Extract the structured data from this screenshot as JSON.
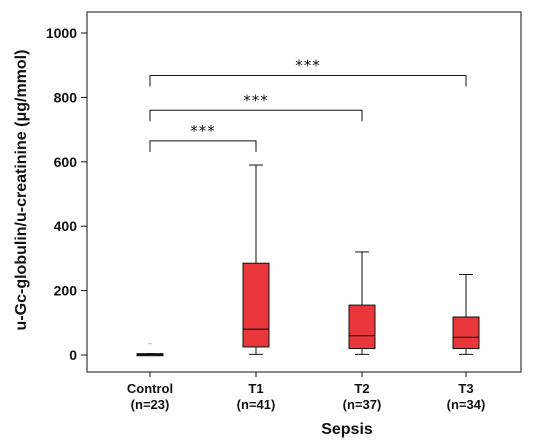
{
  "chart_data": {
    "type": "box",
    "xlabel": "Sepsis",
    "ylabel": "u-Gc-globulin/u-creatinine (μg/mmol)",
    "ylim": [
      -60,
      1040
    ],
    "yticks": [
      0,
      200,
      400,
      600,
      800,
      1000
    ],
    "categories": [
      "Control",
      "T1",
      "T2",
      "T3"
    ],
    "category_sublabels": [
      "(n=23)",
      "(n=41)",
      "(n=37)",
      "(n=34)"
    ],
    "boxes": [
      {
        "category": "Control",
        "whisker_low": 0,
        "q1": 0,
        "median": 2,
        "q3": 4,
        "whisker_high": 4,
        "outlier": 35
      },
      {
        "category": "T1",
        "whisker_low": 2,
        "q1": 25,
        "median": 80,
        "q3": 285,
        "whisker_high": 590
      },
      {
        "category": "T2",
        "whisker_low": 2,
        "q1": 20,
        "median": 60,
        "q3": 155,
        "whisker_high": 320
      },
      {
        "category": "T3",
        "whisker_low": 2,
        "q1": 20,
        "median": 55,
        "q3": 118,
        "whisker_high": 250
      }
    ],
    "significance": [
      {
        "from": "Control",
        "to": "T1",
        "label": "***",
        "level": 665
      },
      {
        "from": "Control",
        "to": "T2",
        "label": "***",
        "level": 760
      },
      {
        "from": "Control",
        "to": "T3",
        "label": "***",
        "level": 868
      }
    ],
    "colors": {
      "box_fill": "#e8363a",
      "control_fill": "#cccccc",
      "line": "#111111"
    }
  }
}
